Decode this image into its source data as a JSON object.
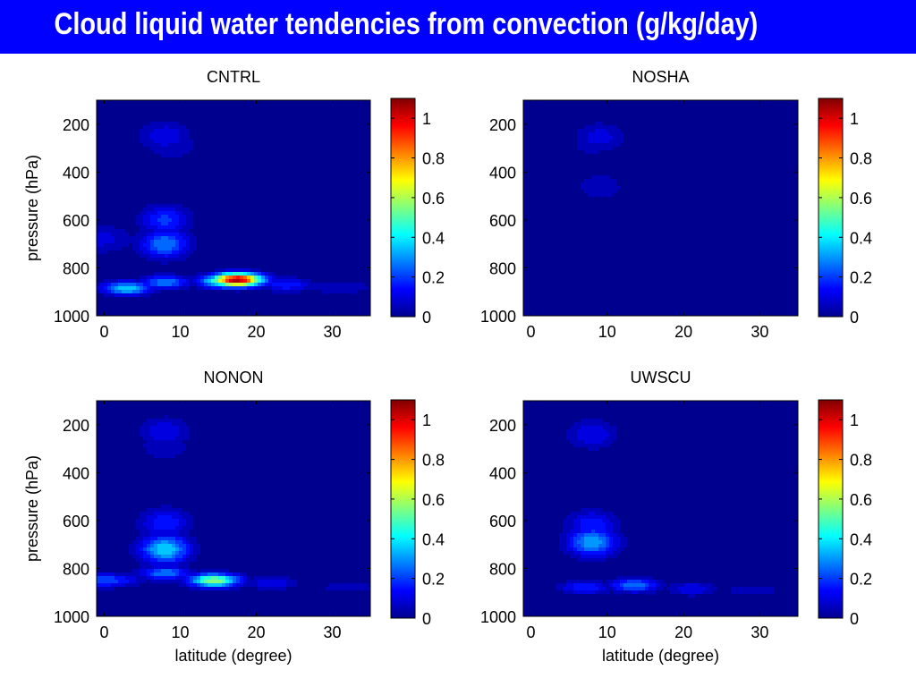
{
  "page_title": "Cloud liquid water tendencies from convection (g/kg/day)",
  "chart_data": [
    {
      "type": "heatmap",
      "title": "CNTRL",
      "xlabel": "",
      "ylabel": "pressure (hPa)",
      "xlim": [
        -1,
        35
      ],
      "ylim": [
        1000,
        100
      ],
      "xticks": [
        0,
        10,
        20,
        30
      ],
      "yticks": [
        200,
        400,
        600,
        800,
        1000
      ],
      "colorbar": {
        "range": [
          0,
          1.1
        ],
        "ticks": [
          0,
          0.2,
          0.4,
          0.6,
          0.8,
          1
        ],
        "colormap": "jet"
      },
      "features": [
        {
          "lat": 8,
          "p": 860,
          "value": 0.3
        },
        {
          "lat": 17.5,
          "p": 850,
          "value": 1.1
        },
        {
          "lat": 16,
          "p": 855,
          "value": 0.6
        },
        {
          "lat": 24,
          "p": 870,
          "value": 0.2
        },
        {
          "lat": 3,
          "p": 885,
          "value": 0.4
        },
        {
          "lat": 31,
          "p": 880,
          "value": 0.1
        },
        {
          "lat": 8,
          "p": 700,
          "value": 0.3
        },
        {
          "lat": 8,
          "p": 600,
          "value": 0.22
        },
        {
          "lat": 9,
          "p": 290,
          "value": 0.1
        },
        {
          "lat": 8,
          "p": 250,
          "value": 0.15
        },
        {
          "lat": -0.5,
          "p": 680,
          "value": 0.12
        }
      ]
    },
    {
      "type": "heatmap",
      "title": "NOSHA",
      "xlabel": "",
      "ylabel": "",
      "xlim": [
        -1,
        35
      ],
      "ylim": [
        1000,
        100
      ],
      "xticks": [
        0,
        10,
        20,
        30
      ],
      "yticks": [
        200,
        400,
        600,
        800,
        1000
      ],
      "colorbar": {
        "range": [
          0,
          1.1
        ],
        "ticks": [
          0,
          0.2,
          0.4,
          0.6,
          0.8,
          1
        ],
        "colormap": "jet"
      },
      "features": [
        {
          "lat": 9,
          "p": 255,
          "value": 0.13
        },
        {
          "lat": 8,
          "p": 280,
          "value": 0.08
        },
        {
          "lat": 9,
          "p": 460,
          "value": 0.09
        }
      ]
    },
    {
      "type": "heatmap",
      "title": "NONON",
      "xlabel": "latitude (degree)",
      "ylabel": "pressure (hPa)",
      "xlim": [
        -1,
        35
      ],
      "ylim": [
        1000,
        100
      ],
      "xticks": [
        0,
        10,
        20,
        30
      ],
      "yticks": [
        200,
        400,
        600,
        800,
        1000
      ],
      "colorbar": {
        "range": [
          0,
          1.1
        ],
        "ticks": [
          0,
          0.2,
          0.4,
          0.6,
          0.8,
          1
        ],
        "colormap": "jet"
      },
      "features": [
        {
          "lat": 8,
          "p": 820,
          "value": 0.3
        },
        {
          "lat": 8,
          "p": 720,
          "value": 0.4
        },
        {
          "lat": 14.5,
          "p": 850,
          "value": 0.6
        },
        {
          "lat": 8,
          "p": 610,
          "value": 0.2
        },
        {
          "lat": 22,
          "p": 860,
          "value": 0.15
        },
        {
          "lat": 32,
          "p": 880,
          "value": 0.08
        },
        {
          "lat": 0,
          "p": 850,
          "value": 0.25
        },
        {
          "lat": 8,
          "p": 230,
          "value": 0.15
        },
        {
          "lat": 8,
          "p": 290,
          "value": 0.1
        }
      ]
    },
    {
      "type": "heatmap",
      "title": "UWSCU",
      "xlabel": "latitude (degree)",
      "ylabel": "",
      "xlim": [
        -1,
        35
      ],
      "ylim": [
        1000,
        100
      ],
      "xticks": [
        0,
        10,
        20,
        30
      ],
      "yticks": [
        200,
        400,
        600,
        800,
        1000
      ],
      "colorbar": {
        "range": [
          0,
          1.1
        ],
        "ticks": [
          0,
          0.2,
          0.4,
          0.6,
          0.8,
          1
        ],
        "colormap": "jet"
      },
      "features": [
        {
          "lat": 8,
          "p": 690,
          "value": 0.35
        },
        {
          "lat": 8,
          "p": 620,
          "value": 0.2
        },
        {
          "lat": 13.5,
          "p": 870,
          "value": 0.3
        },
        {
          "lat": 7,
          "p": 880,
          "value": 0.2
        },
        {
          "lat": 21,
          "p": 885,
          "value": 0.15
        },
        {
          "lat": 29,
          "p": 890,
          "value": 0.08
        },
        {
          "lat": 8,
          "p": 240,
          "value": 0.15
        }
      ]
    }
  ]
}
